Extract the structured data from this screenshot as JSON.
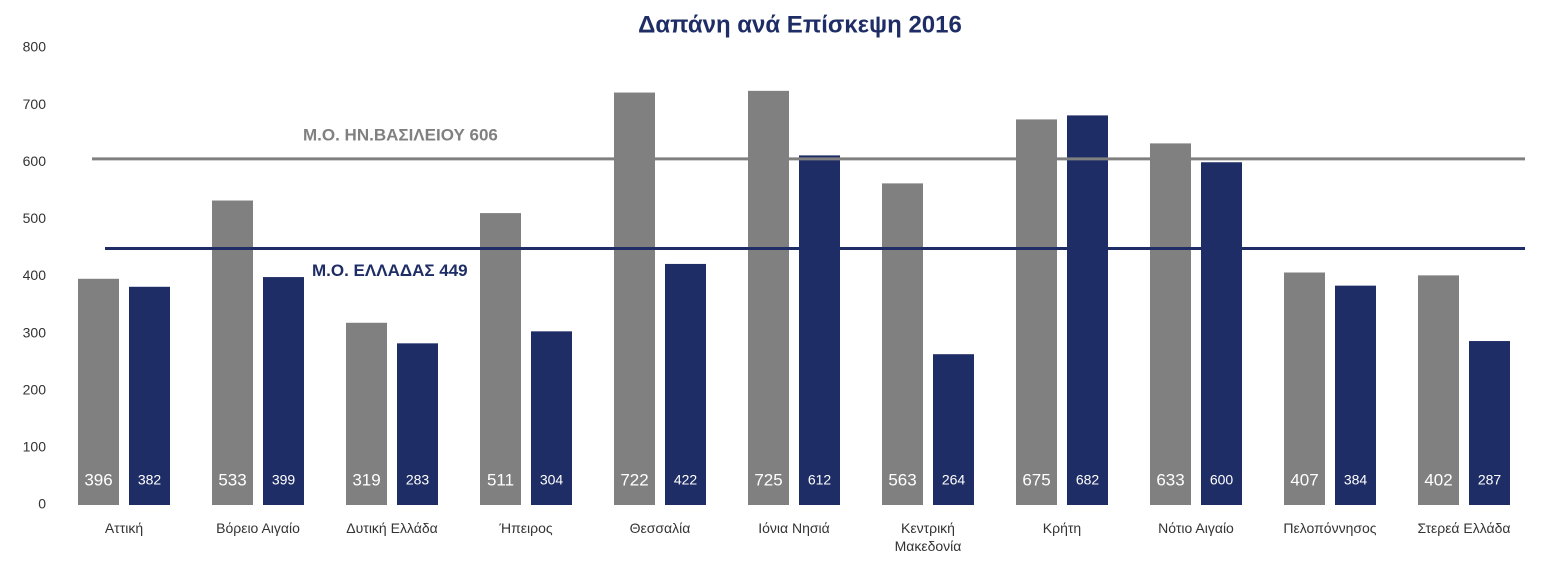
{
  "chart_data": {
    "type": "bar",
    "title": "Δαπάνη ανά Επίσκεψη 2016",
    "categories": [
      "Αττική",
      "Βόρειο Αιγαίο",
      "Δυτική Ελλάδα",
      "Ήπειρος",
      "Θεσσαλία",
      "Ιόνια Νησιά",
      "Κεντρική Μακεδονία",
      "Κρήτη",
      "Νότιο Αιγαίο",
      "Πελοπόννησος",
      "Στερεά Ελλάδα"
    ],
    "series": [
      {
        "color": "#808080",
        "values": [
          396,
          533,
          319,
          511,
          722,
          725,
          563,
          675,
          633,
          407,
          402
        ]
      },
      {
        "color": "#1f2d66",
        "values": [
          382,
          399,
          283,
          304,
          422,
          612,
          264,
          682,
          600,
          384,
          287
        ]
      }
    ],
    "ylim": [
      0,
      800
    ],
    "yticks": [
      0,
      100,
      200,
      300,
      400,
      500,
      600,
      700,
      800
    ],
    "grid": false,
    "annotations": [
      {
        "value": 606,
        "label": "Μ.Ο. ΗΝ.ΒΑΣΙΛΕΙΟΥ 606",
        "color": "#808080"
      },
      {
        "value": 449,
        "label": "Μ.Ο. ΕΛΛΑΔΑΣ 449",
        "color": "#1f2d66"
      }
    ]
  }
}
